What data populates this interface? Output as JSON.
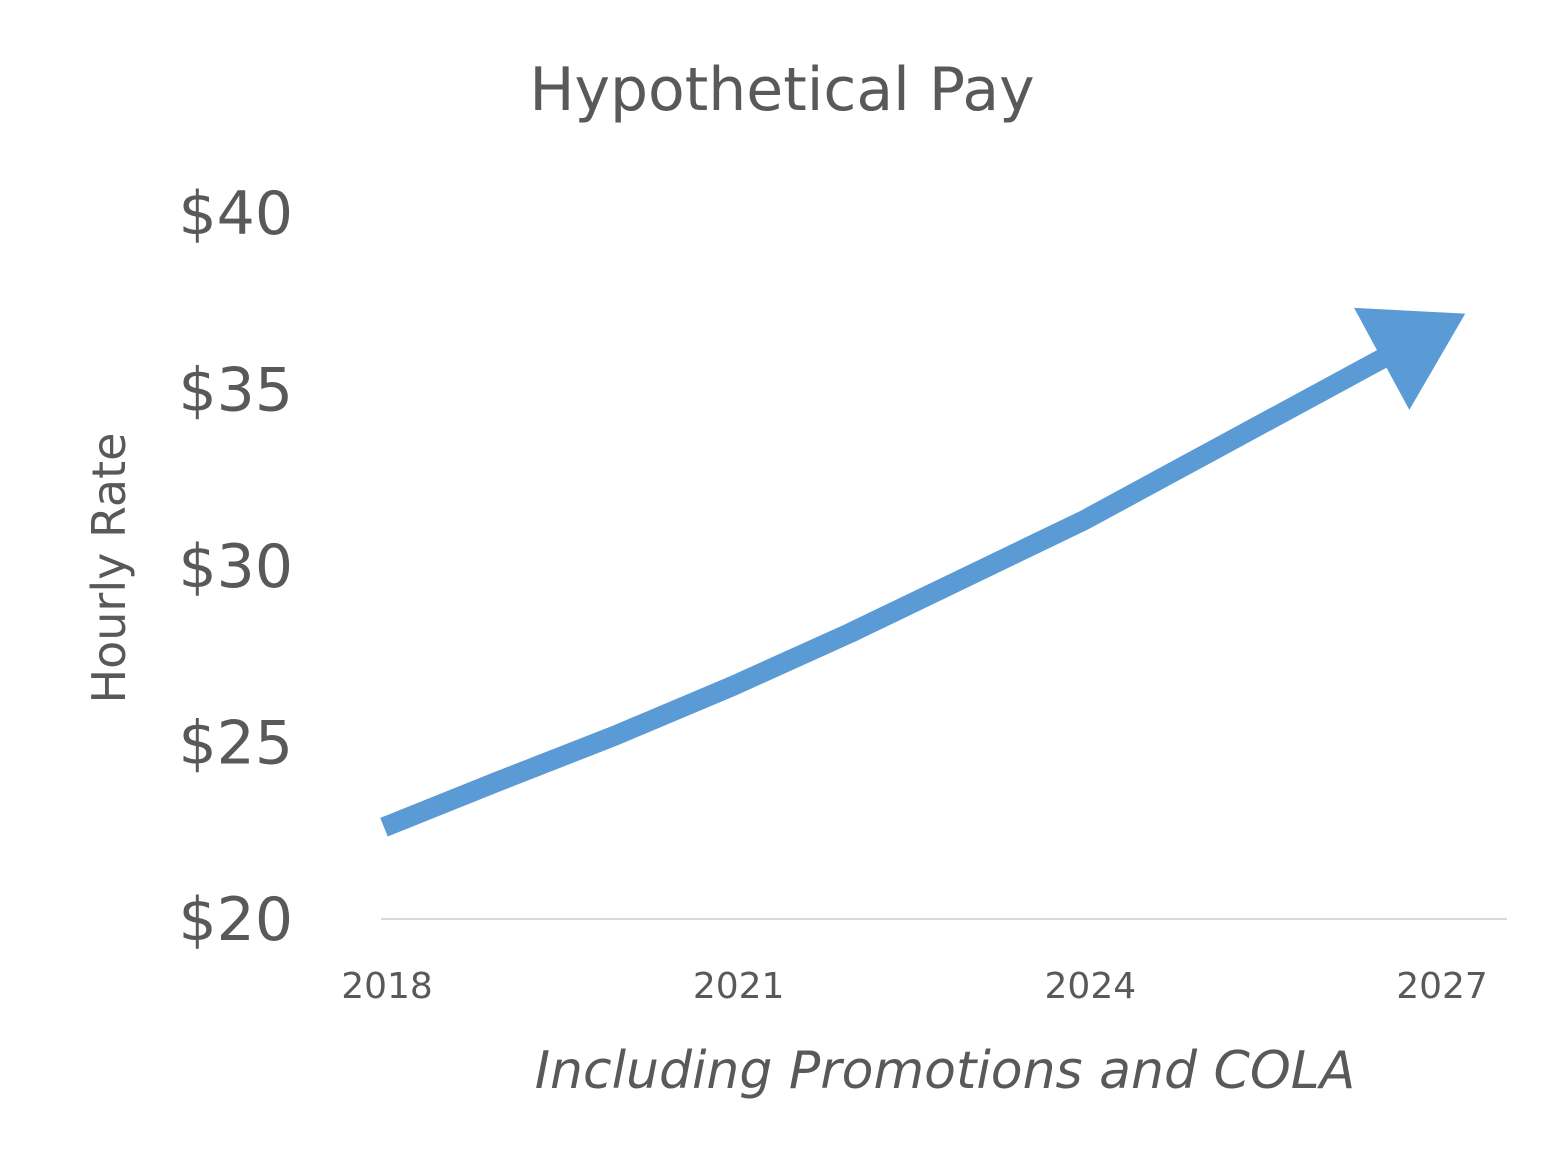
{
  "chart_data": {
    "type": "line",
    "title": "Hypothetical Pay",
    "xlabel": "Including Promotions and COLA",
    "ylabel": "Hourly Rate",
    "x_ticks": [
      2018,
      2021,
      2024,
      2027
    ],
    "x_tick_labels": [
      "2018",
      "2021",
      "2024",
      "2027"
    ],
    "y_ticks": [
      20,
      25,
      30,
      35,
      40
    ],
    "y_tick_labels": [
      "$20",
      "$25",
      "$30",
      "$35",
      "$40"
    ],
    "xlim": [
      2018,
      2027.7
    ],
    "ylim": [
      20,
      40
    ],
    "grid": false,
    "legend": "none",
    "series": [
      {
        "x": [
          2018,
          2019,
          2020,
          2021,
          2022,
          2023,
          2024,
          2025,
          2026,
          2027
        ],
        "values": [
          22.6,
          23.9,
          25.2,
          26.6,
          28.1,
          29.7,
          31.3,
          33.1,
          34.9,
          36.7
        ],
        "color": "#5b9bd5",
        "end_marker": "arrow"
      }
    ]
  }
}
